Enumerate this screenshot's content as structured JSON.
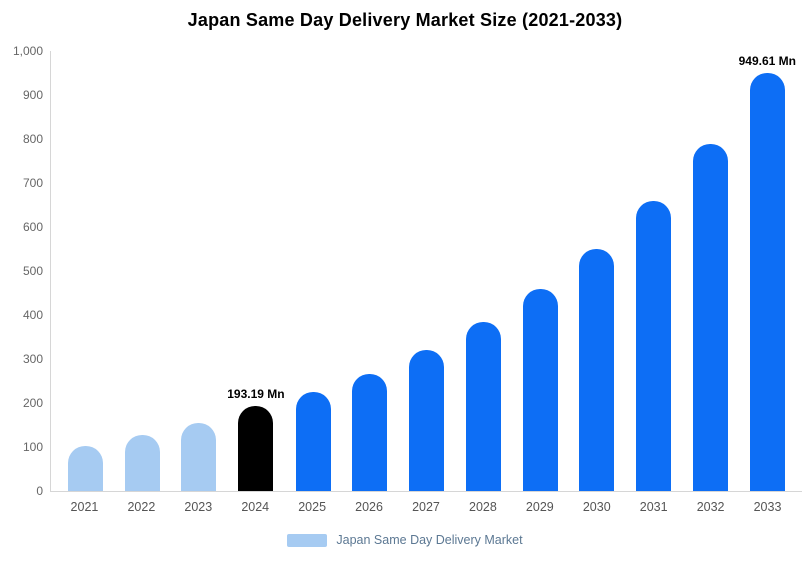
{
  "title": "Japan Same Day Delivery Market Size (2021-2033)",
  "legend": {
    "label": "Japan Same Day Delivery Market",
    "swatch_color": "#a6cbf2",
    "text_color": "#5c7893"
  },
  "colors": {
    "historical": "#a6cbf2",
    "highlight": "#000000",
    "forecast": "#0d6ef5"
  },
  "chart_data": {
    "type": "bar",
    "title": "Japan Same Day Delivery Market Size (2021-2033)",
    "categories": [
      "2021",
      "2022",
      "2023",
      "2024",
      "2025",
      "2026",
      "2027",
      "2028",
      "2029",
      "2030",
      "2031",
      "2032",
      "2033"
    ],
    "values": [
      103,
      128,
      155,
      193.19,
      225,
      266,
      320,
      385,
      460,
      550,
      658,
      788,
      949.61
    ],
    "bar_colors": [
      "historical",
      "historical",
      "historical",
      "highlight",
      "forecast",
      "forecast",
      "forecast",
      "forecast",
      "forecast",
      "forecast",
      "forecast",
      "forecast",
      "forecast"
    ],
    "unit": "Mn",
    "xlabel": "",
    "ylabel": "",
    "ylim": [
      0,
      1000
    ],
    "yticks": [
      0,
      100,
      200,
      300,
      400,
      500,
      600,
      700,
      800,
      900,
      1000
    ],
    "ytick_labels": [
      "0",
      "100",
      "200",
      "300",
      "400",
      "500",
      "600",
      "700",
      "800",
      "900",
      "1,000"
    ],
    "grid": false,
    "legend_position": "bottom",
    "annotations": [
      {
        "category": "2024",
        "text": "193.19 Mn"
      },
      {
        "category": "2033",
        "text": "949.61 Mn"
      }
    ]
  }
}
